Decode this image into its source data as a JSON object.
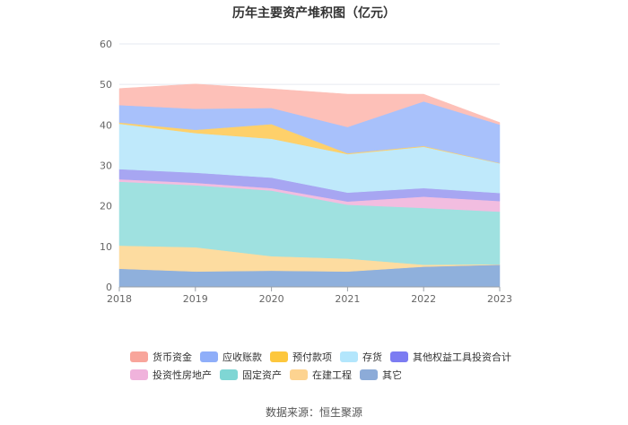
{
  "chart_data": {
    "type": "area",
    "stacked": true,
    "title": "历年主要资产堆积图（亿元）",
    "source": "数据来源：恒生聚源",
    "categories": [
      "2018",
      "2019",
      "2020",
      "2021",
      "2022",
      "2023"
    ],
    "y_ticks": [
      "0",
      "10",
      "20",
      "30",
      "40",
      "50",
      "60"
    ],
    "ylim": [
      0,
      60
    ],
    "series": [
      {
        "name": "其它",
        "color": "#8fb0dc",
        "values": [
          4.5,
          3.8,
          4.0,
          3.8,
          5.0,
          5.5
        ]
      },
      {
        "name": "在建工程",
        "color": "#fddca0",
        "values": [
          5.7,
          6.0,
          3.6,
          3.2,
          0.5,
          0.1
        ]
      },
      {
        "name": "固定资产",
        "color": "#9fe1e0",
        "values": [
          15.8,
          15.3,
          16.2,
          13.3,
          14.0,
          13.0
        ]
      },
      {
        "name": "投资性房地产",
        "color": "#f2bde0",
        "values": [
          0.6,
          0.6,
          0.6,
          0.8,
          2.8,
          2.6
        ]
      },
      {
        "name": "其他权益工具投资合计",
        "color": "#a7a6f2",
        "values": [
          2.5,
          2.5,
          2.6,
          2.2,
          2.1,
          2.0
        ]
      },
      {
        "name": "存货",
        "color": "#bfe9fb",
        "values": [
          11.2,
          9.8,
          9.6,
          9.5,
          10.2,
          7.3
        ]
      },
      {
        "name": "预付款项",
        "color": "#fed06a",
        "values": [
          0.3,
          0.8,
          3.6,
          0.2,
          0.2,
          0.1
        ]
      },
      {
        "name": "应收账款",
        "color": "#a8c1fb",
        "values": [
          4.3,
          5.2,
          4.0,
          6.5,
          11.0,
          9.5
        ]
      },
      {
        "name": "货币资金",
        "color": "#fdc0b8",
        "values": [
          4.1,
          6.1,
          4.7,
          8.1,
          1.8,
          0.5
        ]
      }
    ],
    "legend": [
      [
        "货币资金",
        "应收账款",
        "预付款项",
        "存货",
        "其他权益工具投资合计"
      ],
      [
        "投资性房地产",
        "固定资产",
        "在建工程",
        "其它"
      ]
    ],
    "legend_colors": {
      "货币资金": "#f8a59b",
      "应收账款": "#8faef9",
      "预付款项": "#fdc73d",
      "存货": "#b3e6fc",
      "其他权益工具投资合计": "#7c7cf2",
      "投资性房地产": "#f0b3dc",
      "固定资产": "#7fd6d4",
      "在建工程": "#fdd390",
      "其它": "#8cabd8"
    }
  }
}
